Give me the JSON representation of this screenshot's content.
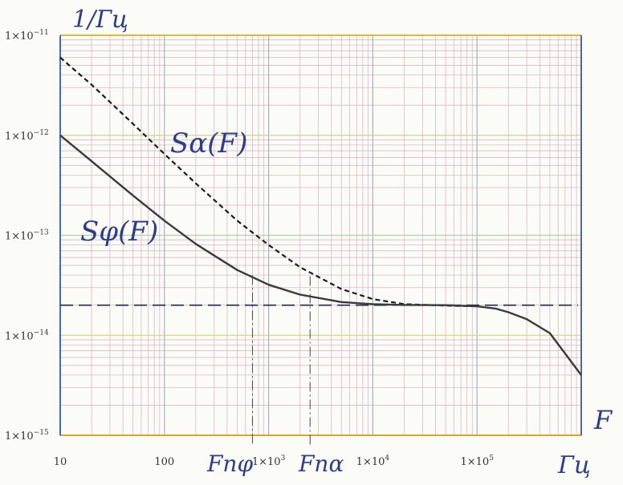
{
  "chart_data": {
    "type": "line",
    "x_scale": "log",
    "y_scale": "log",
    "xlim": [
      10,
      1000000
    ],
    "ylim": [
      1e-15,
      1e-11
    ],
    "grid": true,
    "x_ticks": [
      {
        "value": 10,
        "label": "10"
      },
      {
        "value": 100,
        "label": "100"
      },
      {
        "value": 1000,
        "label": "1×10",
        "exp": "3"
      },
      {
        "value": 10000,
        "label": "1×10",
        "exp": "4"
      },
      {
        "value": 100000,
        "label": "1×10",
        "exp": "5"
      }
    ],
    "y_ticks": [
      {
        "value": 1e-11,
        "label": "1×10",
        "exp": "−11"
      },
      {
        "value": 1e-12,
        "label": "1×10",
        "exp": "−12"
      },
      {
        "value": 1e-13,
        "label": "1×10",
        "exp": "−13"
      },
      {
        "value": 1e-14,
        "label": "1×10",
        "exp": "−14"
      },
      {
        "value": 1e-15,
        "label": "1×10",
        "exp": "−15"
      }
    ],
    "y_unit_label": "1/Гц",
    "x_axis_label": "F",
    "x_unit_label": "Гц",
    "series": [
      {
        "name": "Sα(F)",
        "style": "dashed",
        "color": "#1c1c1c",
        "x": [
          10,
          20,
          50,
          100,
          200,
          500,
          1000,
          2000,
          5000,
          10000,
          20000,
          50000,
          100000
        ],
        "y": [
          6e-12,
          3.2e-12,
          1.3e-12,
          6.5e-13,
          3.3e-13,
          1.4e-13,
          8e-14,
          4.8e-14,
          2.9e-14,
          2.3e-14,
          2.05e-14,
          1.98e-14,
          1.95e-14
        ]
      },
      {
        "name": "Sφ(F)",
        "style": "solid",
        "color": "#3a3a3a",
        "x": [
          10,
          20,
          50,
          100,
          200,
          500,
          1000,
          2000,
          5000,
          10000,
          20000,
          50000,
          100000,
          150000,
          200000,
          300000,
          500000,
          1000000
        ],
        "y": [
          1e-12,
          5.5e-13,
          2.5e-13,
          1.4e-13,
          8.2e-14,
          4.5e-14,
          3.2e-14,
          2.55e-14,
          2.15e-14,
          2.05e-14,
          2.01e-14,
          2e-14,
          1.95e-14,
          1.85e-14,
          1.7e-14,
          1.45e-14,
          1.05e-14,
          4e-15
        ]
      }
    ],
    "reference_lines": [
      {
        "orientation": "horizontal",
        "value": 2e-14,
        "style": "long-dash",
        "color": "#22264a"
      }
    ],
    "markers": [
      {
        "label": "Fпφ",
        "x": 700,
        "y_top": 4e-14
      },
      {
        "label": "Fпα",
        "x": 2500,
        "y_top": 3.9e-14
      }
    ],
    "colors": {
      "frame": "#3a56a8",
      "grid_minor": "#dcb8c6",
      "grid_major_v": "#aab0be",
      "grid_major_h": [
        "#cfd38a",
        "#a9d6a7",
        "#d6d880",
        "#c0d6b8"
      ],
      "top_edge": "#e0bc30",
      "bottom_edge": "#d4a820",
      "handwriting": "#2c3e8a"
    }
  }
}
